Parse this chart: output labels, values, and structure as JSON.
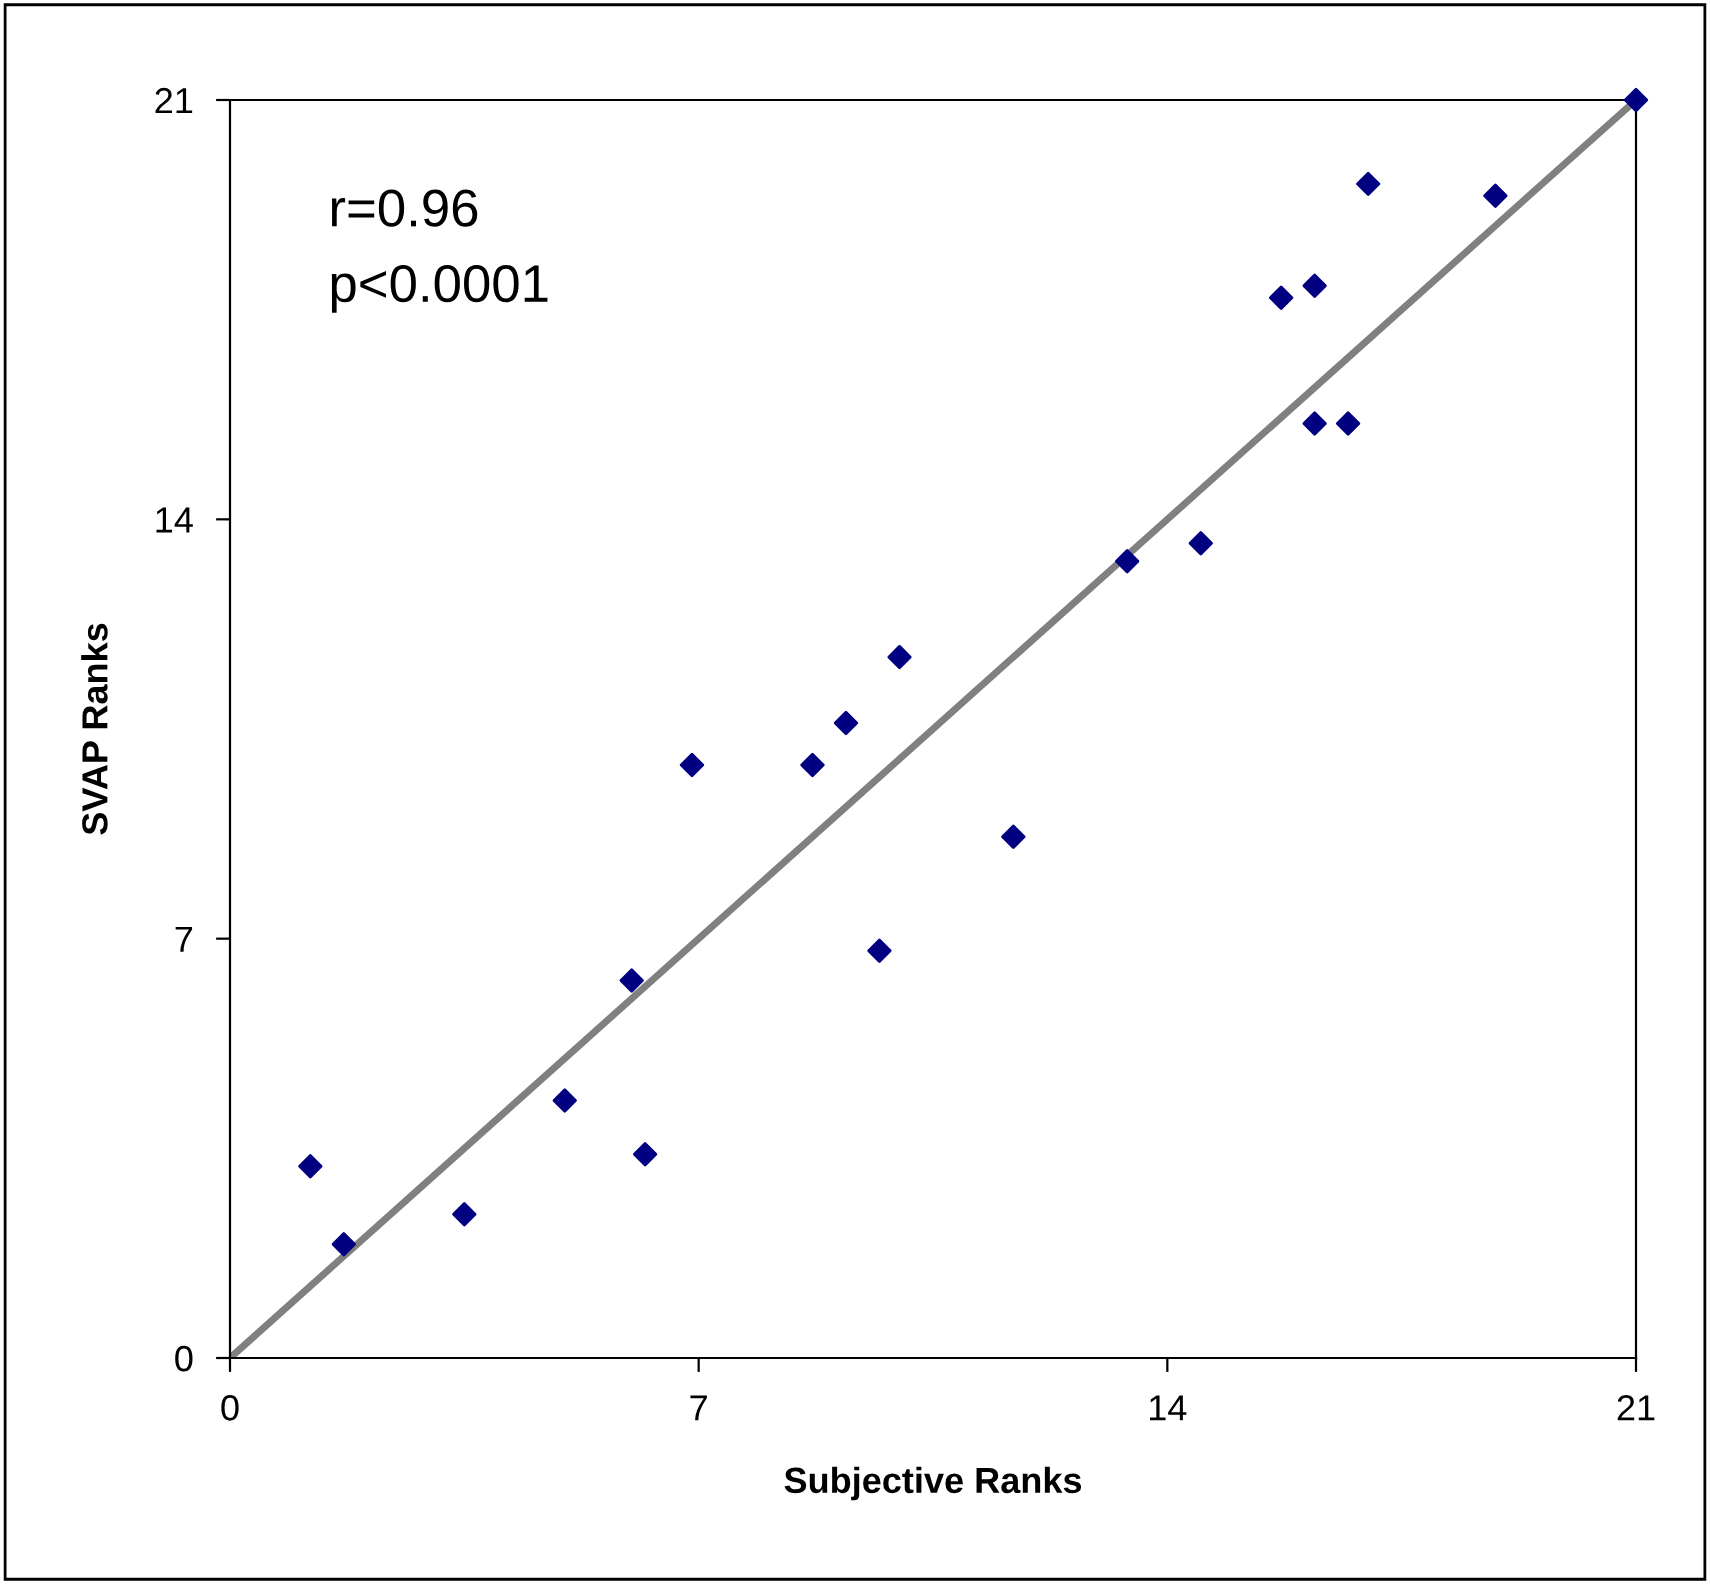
{
  "chart_data": {
    "type": "scatter",
    "xlabel": "Subjective Ranks",
    "ylabel": "SVAP Ranks",
    "annotations": [
      "r=0.96",
      "p<0.0001"
    ],
    "xlim": [
      0,
      21
    ],
    "ylim": [
      0,
      21
    ],
    "xticks": [
      0,
      7,
      14,
      21
    ],
    "yticks": [
      0,
      7,
      14,
      21
    ],
    "grid": false,
    "legend": false,
    "marker": "diamond",
    "series": [
      {
        "color": "#000080",
        "x": [
          1.2,
          1.7,
          3.5,
          5.0,
          6.0,
          6.2,
          6.9,
          8.7,
          9.2,
          9.7,
          10.0,
          11.7,
          13.4,
          14.5,
          15.7,
          16.2,
          16.2,
          16.7,
          17.0,
          18.9,
          21.0
        ],
        "values": [
          3.2,
          1.9,
          2.4,
          4.3,
          6.3,
          3.4,
          9.9,
          9.9,
          10.6,
          6.8,
          11.7,
          8.7,
          13.3,
          13.6,
          17.7,
          17.9,
          15.6,
          15.6,
          19.6,
          19.4,
          21.0
        ]
      },
      {
        "type": "line",
        "color": "#808080",
        "marker": "none",
        "x": [
          0,
          21
        ],
        "values": [
          0,
          21
        ]
      }
    ]
  }
}
